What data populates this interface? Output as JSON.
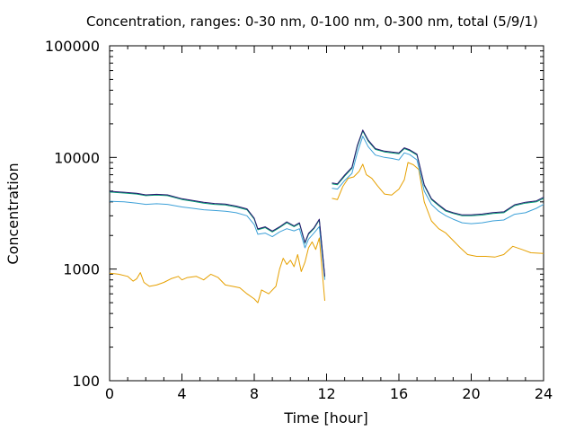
{
  "chart_data": {
    "type": "line",
    "title": "Concentration, ranges: 0-30 nm, 0-100 nm, 0-300 nm, total (5/9/1)",
    "xlabel": "Time [hour]",
    "ylabel": "Concentration",
    "xlim": [
      0,
      24
    ],
    "ylim": [
      100,
      100000
    ],
    "yscale": "log",
    "grid": false,
    "legend": "none",
    "xticks": [
      0,
      4,
      8,
      12,
      16,
      20,
      24
    ],
    "xtick_labels": [
      "0",
      "4",
      "8",
      "12",
      "16",
      "20",
      "24"
    ],
    "yticks": [
      100,
      1000,
      10000,
      100000
    ],
    "ytick_labels": [
      "100",
      "1000",
      "10000",
      "100000"
    ],
    "series": [
      {
        "color": "#e6a000",
        "segments": [
          [
            [
              0,
              920
            ],
            [
              0.5,
              900
            ],
            [
              1.0,
              860
            ],
            [
              1.3,
              780
            ],
            [
              1.5,
              820
            ],
            [
              1.7,
              930
            ],
            [
              1.9,
              760
            ],
            [
              2.2,
              700
            ],
            [
              2.6,
              720
            ],
            [
              3.0,
              760
            ],
            [
              3.4,
              820
            ],
            [
              3.8,
              860
            ],
            [
              4.0,
              800
            ],
            [
              4.3,
              840
            ],
            [
              4.8,
              860
            ],
            [
              5.2,
              800
            ],
            [
              5.6,
              900
            ],
            [
              6.0,
              840
            ],
            [
              6.4,
              720
            ],
            [
              6.8,
              700
            ],
            [
              7.2,
              680
            ],
            [
              7.6,
              600
            ],
            [
              8.0,
              540
            ],
            [
              8.2,
              500
            ],
            [
              8.4,
              650
            ],
            [
              8.8,
              600
            ],
            [
              9.2,
              700
            ],
            [
              9.4,
              1000
            ],
            [
              9.6,
              1250
            ],
            [
              9.8,
              1100
            ],
            [
              10.0,
              1200
            ],
            [
              10.2,
              1050
            ],
            [
              10.4,
              1350
            ],
            [
              10.6,
              950
            ],
            [
              10.8,
              1150
            ],
            [
              11.0,
              1550
            ],
            [
              11.2,
              1750
            ],
            [
              11.4,
              1500
            ],
            [
              11.6,
              1900
            ],
            [
              11.9,
              520
            ]
          ],
          [
            [
              12.3,
              4300
            ],
            [
              12.6,
              4200
            ],
            [
              12.9,
              5500
            ],
            [
              13.2,
              6500
            ],
            [
              13.5,
              6700
            ],
            [
              13.8,
              7500
            ],
            [
              14.0,
              8700
            ],
            [
              14.2,
              7000
            ],
            [
              14.5,
              6500
            ],
            [
              14.8,
              5600
            ],
            [
              15.2,
              4700
            ],
            [
              15.6,
              4600
            ],
            [
              16.0,
              5200
            ],
            [
              16.3,
              6300
            ],
            [
              16.5,
              9000
            ],
            [
              16.8,
              8600
            ],
            [
              17.1,
              7800
            ],
            [
              17.4,
              4000
            ],
            [
              17.8,
              2700
            ],
            [
              18.2,
              2300
            ],
            [
              18.6,
              2100
            ],
            [
              19.0,
              1800
            ],
            [
              19.4,
              1550
            ],
            [
              19.8,
              1350
            ],
            [
              20.3,
              1300
            ],
            [
              20.8,
              1300
            ],
            [
              21.3,
              1280
            ],
            [
              21.8,
              1350
            ],
            [
              22.3,
              1600
            ],
            [
              22.8,
              1500
            ],
            [
              23.3,
              1400
            ],
            [
              24.0,
              1380
            ]
          ]
        ]
      },
      {
        "color": "#3ca0d8",
        "segments": [
          [
            [
              0,
              4050
            ],
            [
              0.8,
              4000
            ],
            [
              1.5,
              3900
            ],
            [
              2.0,
              3800
            ],
            [
              2.6,
              3850
            ],
            [
              3.2,
              3800
            ],
            [
              4.0,
              3600
            ],
            [
              4.6,
              3500
            ],
            [
              5.2,
              3400
            ],
            [
              5.8,
              3350
            ],
            [
              6.4,
              3300
            ],
            [
              7.0,
              3200
            ],
            [
              7.6,
              3000
            ],
            [
              8.0,
              2500
            ],
            [
              8.2,
              2050
            ],
            [
              8.6,
              2100
            ],
            [
              9.0,
              1950
            ],
            [
              9.4,
              2150
            ],
            [
              9.8,
              2300
            ],
            [
              10.2,
              2200
            ],
            [
              10.5,
              2300
            ],
            [
              10.8,
              1550
            ],
            [
              11.0,
              1850
            ],
            [
              11.3,
              2100
            ],
            [
              11.6,
              2400
            ],
            [
              11.9,
              800
            ]
          ],
          [
            [
              12.3,
              5300
            ],
            [
              12.6,
              5200
            ],
            [
              13.0,
              6200
            ],
            [
              13.4,
              7200
            ],
            [
              13.7,
              11000
            ],
            [
              14.0,
              15500
            ],
            [
              14.3,
              12500
            ],
            [
              14.7,
              10500
            ],
            [
              15.2,
              10000
            ],
            [
              15.6,
              9800
            ],
            [
              16.0,
              9500
            ],
            [
              16.3,
              11000
            ],
            [
              16.6,
              10600
            ],
            [
              17.0,
              9500
            ],
            [
              17.4,
              5000
            ],
            [
              17.8,
              3800
            ],
            [
              18.2,
              3300
            ],
            [
              18.6,
              3000
            ],
            [
              19.0,
              2800
            ],
            [
              19.5,
              2600
            ],
            [
              20.0,
              2550
            ],
            [
              20.6,
              2600
            ],
            [
              21.2,
              2700
            ],
            [
              21.8,
              2750
            ],
            [
              22.4,
              3100
            ],
            [
              23.0,
              3200
            ],
            [
              23.6,
              3500
            ],
            [
              24.0,
              3800
            ]
          ]
        ]
      },
      {
        "color": "#009e73",
        "segments": [
          [
            [
              0,
              4900
            ],
            [
              0.8,
              4800
            ],
            [
              1.5,
              4700
            ],
            [
              2.0,
              4550
            ],
            [
              2.6,
              4600
            ],
            [
              3.2,
              4550
            ],
            [
              4.0,
              4200
            ],
            [
              4.6,
              4050
            ],
            [
              5.2,
              3900
            ],
            [
              5.8,
              3800
            ],
            [
              6.4,
              3750
            ],
            [
              7.0,
              3600
            ],
            [
              7.6,
              3400
            ],
            [
              8.0,
              2800
            ],
            [
              8.2,
              2250
            ],
            [
              8.6,
              2350
            ],
            [
              9.0,
              2150
            ],
            [
              9.4,
              2350
            ],
            [
              9.8,
              2600
            ],
            [
              10.2,
              2400
            ],
            [
              10.5,
              2550
            ],
            [
              10.8,
              1700
            ],
            [
              11.0,
              2050
            ],
            [
              11.3,
              2300
            ],
            [
              11.6,
              2750
            ],
            [
              11.9,
              850
            ]
          ],
          [
            [
              12.3,
              5800
            ],
            [
              12.6,
              5700
            ],
            [
              13.0,
              6800
            ],
            [
              13.4,
              8000
            ],
            [
              13.7,
              12500
            ],
            [
              14.0,
              17200
            ],
            [
              14.3,
              14000
            ],
            [
              14.7,
              11800
            ],
            [
              15.2,
              11200
            ],
            [
              15.6,
              11000
            ],
            [
              16.0,
              10800
            ],
            [
              16.3,
              12000
            ],
            [
              16.6,
              11500
            ],
            [
              17.0,
              10500
            ],
            [
              17.4,
              5600
            ],
            [
              17.8,
              4200
            ],
            [
              18.2,
              3700
            ],
            [
              18.6,
              3300
            ],
            [
              19.0,
              3150
            ],
            [
              19.5,
              3000
            ],
            [
              20.0,
              3000
            ],
            [
              20.6,
              3050
            ],
            [
              21.2,
              3150
            ],
            [
              21.8,
              3200
            ],
            [
              22.4,
              3700
            ],
            [
              23.0,
              3900
            ],
            [
              23.6,
              4000
            ],
            [
              24.0,
              4300
            ]
          ]
        ]
      },
      {
        "color": "#2a1870",
        "segments": [
          [
            [
              0,
              4980
            ],
            [
              0.8,
              4880
            ],
            [
              1.5,
              4780
            ],
            [
              2.0,
              4620
            ],
            [
              2.6,
              4670
            ],
            [
              3.2,
              4620
            ],
            [
              4.0,
              4270
            ],
            [
              4.6,
              4120
            ],
            [
              5.2,
              3970
            ],
            [
              5.8,
              3870
            ],
            [
              6.4,
              3820
            ],
            [
              7.0,
              3670
            ],
            [
              7.6,
              3460
            ],
            [
              8.0,
              2850
            ],
            [
              8.2,
              2290
            ],
            [
              8.6,
              2390
            ],
            [
              9.0,
              2190
            ],
            [
              9.4,
              2390
            ],
            [
              9.8,
              2650
            ],
            [
              10.2,
              2440
            ],
            [
              10.5,
              2600
            ],
            [
              10.8,
              1730
            ],
            [
              11.0,
              2090
            ],
            [
              11.3,
              2340
            ],
            [
              11.6,
              2800
            ],
            [
              11.9,
              860
            ]
          ],
          [
            [
              12.3,
              5900
            ],
            [
              12.6,
              5800
            ],
            [
              13.0,
              6950
            ],
            [
              13.4,
              8150
            ],
            [
              13.7,
              12800
            ],
            [
              14.0,
              17600
            ],
            [
              14.3,
              14300
            ],
            [
              14.7,
              12000
            ],
            [
              15.2,
              11400
            ],
            [
              15.6,
              11200
            ],
            [
              16.0,
              11000
            ],
            [
              16.3,
              12200
            ],
            [
              16.6,
              11700
            ],
            [
              17.0,
              10700
            ],
            [
              17.4,
              5700
            ],
            [
              17.8,
              4280
            ],
            [
              18.2,
              3770
            ],
            [
              18.6,
              3360
            ],
            [
              19.0,
              3200
            ],
            [
              19.5,
              3060
            ],
            [
              20.0,
              3060
            ],
            [
              20.6,
              3110
            ],
            [
              21.2,
              3210
            ],
            [
              21.8,
              3260
            ],
            [
              22.4,
              3770
            ],
            [
              23.0,
              3970
            ],
            [
              23.6,
              4080
            ],
            [
              24.0,
              4400
            ]
          ]
        ]
      }
    ]
  }
}
